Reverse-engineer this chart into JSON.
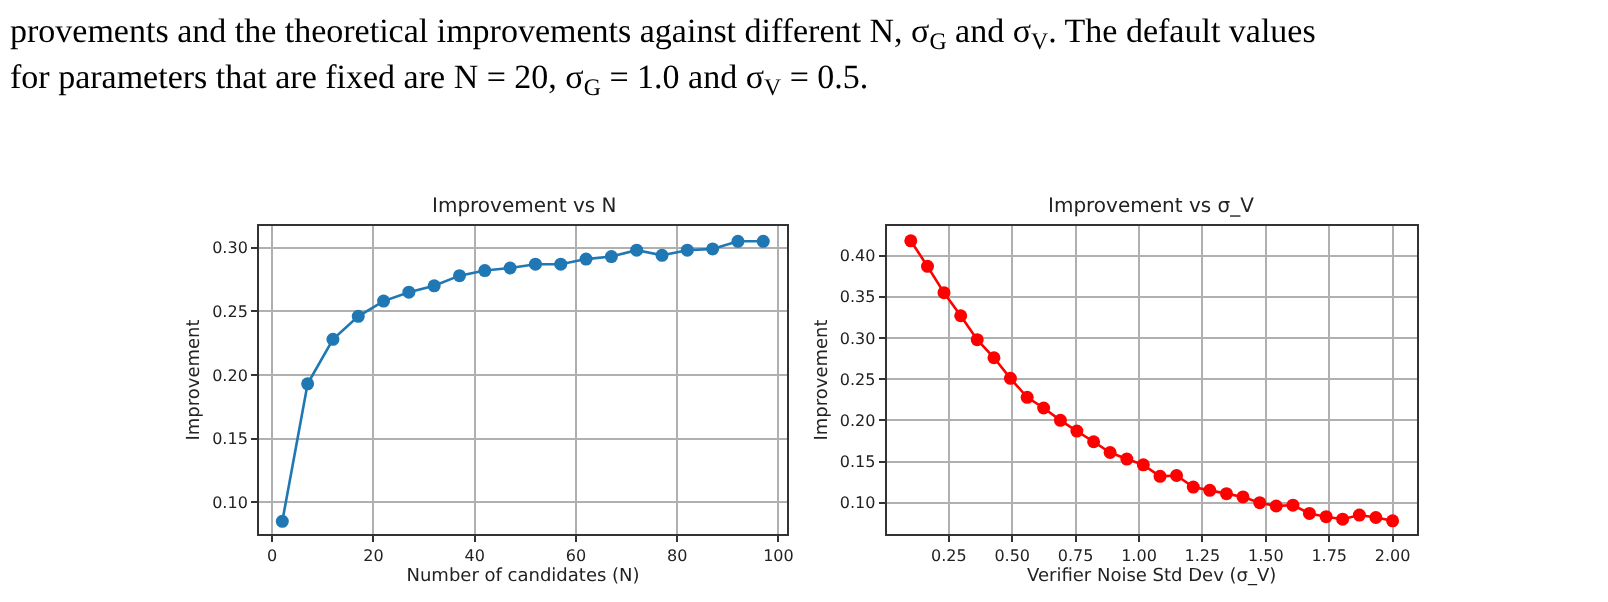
{
  "chart_data": [
    {
      "type": "line",
      "title": "Improvement vs N",
      "xlabel": "Number of candidates (N)",
      "ylabel": "Improvement",
      "annotations": [
        "provements and the theoretical improvements against different N, σ$_{G}$ and σ$_{V}$. The default values",
        "for parameters that are fixed are N = 20, σ$_{G}$ = 1.0 and σ$_{V}$ = 0.5."
      ],
      "x": [
        2,
        7,
        12,
        17,
        22,
        27,
        32,
        37,
        42,
        47,
        52,
        57,
        62,
        67,
        72,
        77,
        82,
        87,
        92,
        97
      ],
      "series": [
        {
          "color": "#1f77b4",
          "values": [
            0.085,
            0.193,
            0.228,
            0.246,
            0.258,
            0.265,
            0.27,
            0.278,
            0.282,
            0.284,
            0.287,
            0.287,
            0.291,
            0.293,
            0.298,
            0.294,
            0.298,
            0.299,
            0.305,
            0.305
          ]
        }
      ],
      "xlim": [
        -2.6,
        101.7
      ],
      "ylim": [
        0.075,
        0.317
      ],
      "xticks": [
        0,
        20,
        40,
        60,
        80,
        100
      ],
      "yticks": [
        {
          "value": 0.1,
          "label": "0.10"
        },
        {
          "value": 0.15,
          "label": "0.15"
        },
        {
          "value": 0.2,
          "label": "0.20"
        },
        {
          "value": 0.25,
          "label": "0.25"
        },
        {
          "value": 0.3,
          "label": "0.30"
        }
      ],
      "grid": true,
      "marker": "circle",
      "line_style": "solid"
    },
    {
      "type": "line",
      "title": "Improvement vs σ_V",
      "xlabel": "Verifier Noise Std Dev (σ_V)",
      "ylabel": "Improvement",
      "x": [
        0.1,
        0.166,
        0.231,
        0.297,
        0.362,
        0.428,
        0.493,
        0.559,
        0.624,
        0.69,
        0.755,
        0.821,
        0.886,
        0.952,
        1.017,
        1.083,
        1.148,
        1.214,
        1.279,
        1.345,
        1.41,
        1.476,
        1.541,
        1.607,
        1.672,
        1.738,
        1.803,
        1.869,
        1.934,
        2.0
      ],
      "series": [
        {
          "color": "#ff0000",
          "values": [
            0.418,
            0.387,
            0.355,
            0.327,
            0.298,
            0.276,
            0.251,
            0.228,
            0.215,
            0.2,
            0.187,
            0.174,
            0.161,
            0.153,
            0.146,
            0.132,
            0.133,
            0.119,
            0.115,
            0.111,
            0.107,
            0.1,
            0.096,
            0.097,
            0.087,
            0.083,
            0.08,
            0.085,
            0.082,
            0.078
          ]
        }
      ],
      "xlim": [
        0.005,
        2.095
      ],
      "ylim": [
        0.062,
        0.436
      ],
      "xticks": [
        {
          "value": 0.25,
          "label": "0.25"
        },
        {
          "value": 0.5,
          "label": "0.50"
        },
        {
          "value": 0.75,
          "label": "0.75"
        },
        {
          "value": 1.0,
          "label": "1.00"
        },
        {
          "value": 1.25,
          "label": "1.25"
        },
        {
          "value": 1.5,
          "label": "1.50"
        },
        {
          "value": 1.75,
          "label": "1.75"
        },
        {
          "value": 2.0,
          "label": "2.00"
        }
      ],
      "yticks": [
        {
          "value": 0.1,
          "label": "0.10"
        },
        {
          "value": 0.15,
          "label": "0.15"
        },
        {
          "value": 0.2,
          "label": "0.20"
        },
        {
          "value": 0.25,
          "label": "0.25"
        },
        {
          "value": 0.3,
          "label": "0.30"
        },
        {
          "value": 0.35,
          "label": "0.35"
        },
        {
          "value": 0.4,
          "label": "0.40"
        }
      ],
      "grid": true,
      "marker": "circle",
      "line_style": "solid"
    }
  ]
}
